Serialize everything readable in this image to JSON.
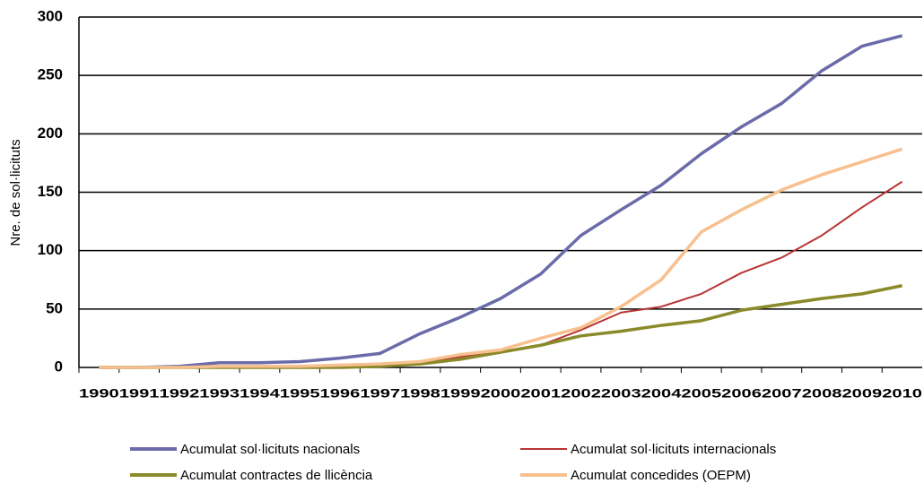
{
  "chart_data": {
    "type": "line",
    "y_label": "Nre. de sol·licituts",
    "categories": [
      "1990",
      "1991",
      "1992",
      "1993",
      "1994",
      "1995",
      "1996",
      "1997",
      "1998",
      "1999",
      "2000",
      "2001",
      "2002",
      "2003",
      "2004",
      "2005",
      "2006",
      "2007",
      "2008",
      "2009",
      "2010"
    ],
    "series": [
      {
        "name": "Acumulat sol·licituts nacionals",
        "color": "#6b6baa",
        "values": [
          0,
          0,
          1,
          4,
          4,
          5,
          8,
          12,
          29,
          43,
          59,
          80,
          113,
          135,
          156,
          183,
          206,
          226,
          254,
          275,
          284
        ]
      },
      {
        "name": "Acumulat sol·licituts internacionals",
        "color": "#b83434",
        "values": [
          0,
          0,
          0,
          0,
          0,
          0,
          1,
          2,
          4,
          9,
          13,
          19,
          32,
          47,
          52,
          63,
          81,
          94,
          113,
          137,
          159
        ]
      },
      {
        "name": "Acumulat contractes de llicència",
        "color": "#8a8a2a",
        "values": [
          0,
          0,
          0,
          0,
          0,
          0,
          0,
          1,
          3,
          7,
          13,
          19,
          27,
          31,
          36,
          40,
          49,
          54,
          59,
          63,
          70
        ]
      },
      {
        "name": "Acumulat concedides (OEPM)",
        "color": "#f8c08e",
        "values": [
          0,
          0,
          0,
          1,
          1,
          1,
          2,
          3,
          5,
          11,
          15,
          25,
          34,
          52,
          75,
          116,
          135,
          152,
          165,
          176,
          187
        ]
      }
    ],
    "ylim": [
      0,
      300
    ],
    "yticks": [
      0,
      50,
      100,
      150,
      200,
      250,
      300
    ],
    "grid": true
  }
}
